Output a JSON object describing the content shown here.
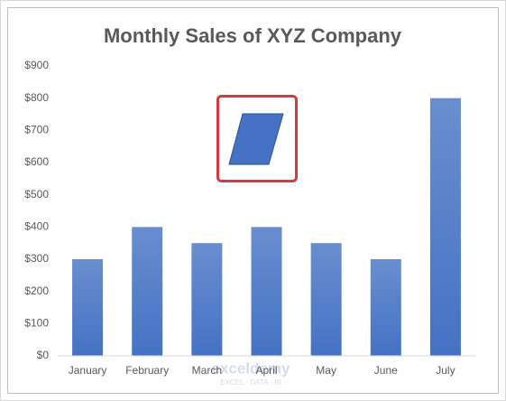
{
  "chart_data": {
    "type": "bar",
    "title": "Monthly Sales of XYZ Company",
    "categories": [
      "January",
      "February",
      "March",
      "April",
      "May",
      "June",
      "July"
    ],
    "values": [
      300,
      400,
      350,
      400,
      350,
      300,
      800
    ],
    "color": "#4472c4",
    "ylim": [
      0,
      900
    ],
    "yticks": [
      {
        "value": 0,
        "label": "$0"
      },
      {
        "value": 100,
        "label": "$100"
      },
      {
        "value": 200,
        "label": "$200"
      },
      {
        "value": 300,
        "label": "$300"
      },
      {
        "value": 400,
        "label": "$400"
      },
      {
        "value": 500,
        "label": "$500"
      },
      {
        "value": 600,
        "label": "$600"
      },
      {
        "value": 700,
        "label": "$700"
      },
      {
        "value": 800,
        "label": "$800"
      },
      {
        "value": 900,
        "label": "$900"
      }
    ],
    "grid": false
  },
  "watermark": {
    "name": "exceldemy",
    "tagline": "EXCEL · DATA · BI"
  }
}
